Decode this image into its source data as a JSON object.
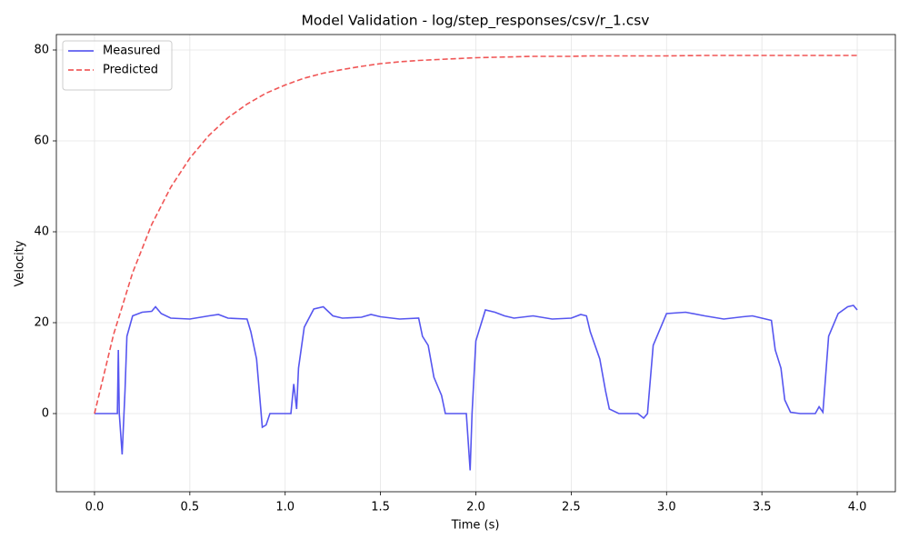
{
  "chart_data": {
    "type": "line",
    "title": "Model Validation - log/step_responses/csv/r_1.csv",
    "x_label": "Time (s)",
    "y_label": "Velocity",
    "xlim": [
      -0.2,
      4.2
    ],
    "ylim": [
      -17.2,
      83.4
    ],
    "xticks": [
      {
        "value": 0,
        "label": "0.0"
      },
      {
        "value": 0.5,
        "label": "0.5"
      },
      {
        "value": 1,
        "label": "1.0"
      },
      {
        "value": 1.5,
        "label": "1.5"
      },
      {
        "value": 2,
        "label": "2.0"
      },
      {
        "value": 2.5,
        "label": "2.5"
      },
      {
        "value": 3,
        "label": "3.0"
      },
      {
        "value": 3.5,
        "label": "3.5"
      },
      {
        "value": 4,
        "label": "4.0"
      }
    ],
    "yticks": [
      0,
      20,
      40,
      60,
      80
    ],
    "grid": true,
    "legend_position": "upper-left",
    "series": [
      {
        "name": "Measured",
        "color": "#4444ee",
        "dash": "solid",
        "x": [
          0,
          0.12,
          0.125,
          0.13,
          0.145,
          0.16,
          0.17,
          0.2,
          0.25,
          0.3,
          0.32,
          0.35,
          0.4,
          0.5,
          0.6,
          0.65,
          0.7,
          0.8,
          0.82,
          0.85,
          0.87,
          0.88,
          0.9,
          0.92,
          1.0,
          1.03,
          1.045,
          1.06,
          1.07,
          1.1,
          1.15,
          1.2,
          1.25,
          1.3,
          1.4,
          1.45,
          1.5,
          1.6,
          1.7,
          1.72,
          1.75,
          1.78,
          1.8,
          1.82,
          1.84,
          1.95,
          1.97,
          1.98,
          2.0,
          2.05,
          2.1,
          2.15,
          2.2,
          2.3,
          2.4,
          2.5,
          2.55,
          2.58,
          2.6,
          2.65,
          2.68,
          2.7,
          2.75,
          2.85,
          2.88,
          2.9,
          2.93,
          3.0,
          3.1,
          3.2,
          3.3,
          3.4,
          3.45,
          3.5,
          3.55,
          3.57,
          3.6,
          3.62,
          3.65,
          3.7,
          3.78,
          3.8,
          3.82,
          3.85,
          3.9,
          3.95,
          3.98,
          4.0
        ],
        "values": [
          0,
          0,
          14,
          0,
          -9,
          5,
          17,
          21.5,
          22.3,
          22.5,
          23.5,
          22,
          21,
          20.8,
          21.5,
          21.8,
          21,
          20.8,
          18,
          12,
          2,
          -3,
          -2.5,
          0,
          0,
          0,
          6.5,
          1,
          10,
          19,
          23,
          23.5,
          21.5,
          21,
          21.2,
          21.8,
          21.3,
          20.8,
          21,
          17,
          15,
          8,
          6,
          4,
          0,
          0,
          -12.5,
          0,
          16,
          22.8,
          22.3,
          21.5,
          21,
          21.5,
          20.8,
          21,
          21.8,
          21.5,
          18,
          12,
          5,
          1,
          0,
          0,
          -1,
          0,
          15,
          22,
          22.3,
          21.5,
          20.8,
          21.3,
          21.5,
          21,
          20.5,
          14,
          10,
          3,
          0.3,
          0,
          0,
          1.5,
          0.3,
          17,
          22,
          23.5,
          23.8,
          22.8
        ]
      },
      {
        "name": "Predicted",
        "color": "#ee4444",
        "dash": "dashed",
        "x": [
          0,
          0.1,
          0.2,
          0.3,
          0.4,
          0.5,
          0.6,
          0.7,
          0.8,
          0.9,
          1.0,
          1.1,
          1.2,
          1.3,
          1.4,
          1.5,
          1.6,
          1.7,
          1.8,
          1.9,
          2.0,
          2.1,
          2.2,
          2.3,
          2.4,
          2.5,
          2.6,
          2.8,
          3.0,
          3.2,
          3.4,
          3.6,
          3.8,
          4.0
        ],
        "values": [
          0,
          17.4,
          31.0,
          41.6,
          49.8,
          56.2,
          61.2,
          65.1,
          68.1,
          70.5,
          72.3,
          73.8,
          74.9,
          75.7,
          76.4,
          77.0,
          77.4,
          77.7,
          77.9,
          78.1,
          78.3,
          78.4,
          78.5,
          78.6,
          78.6,
          78.6,
          78.7,
          78.7,
          78.7,
          78.8,
          78.8,
          78.8,
          78.8,
          78.8
        ]
      }
    ]
  }
}
